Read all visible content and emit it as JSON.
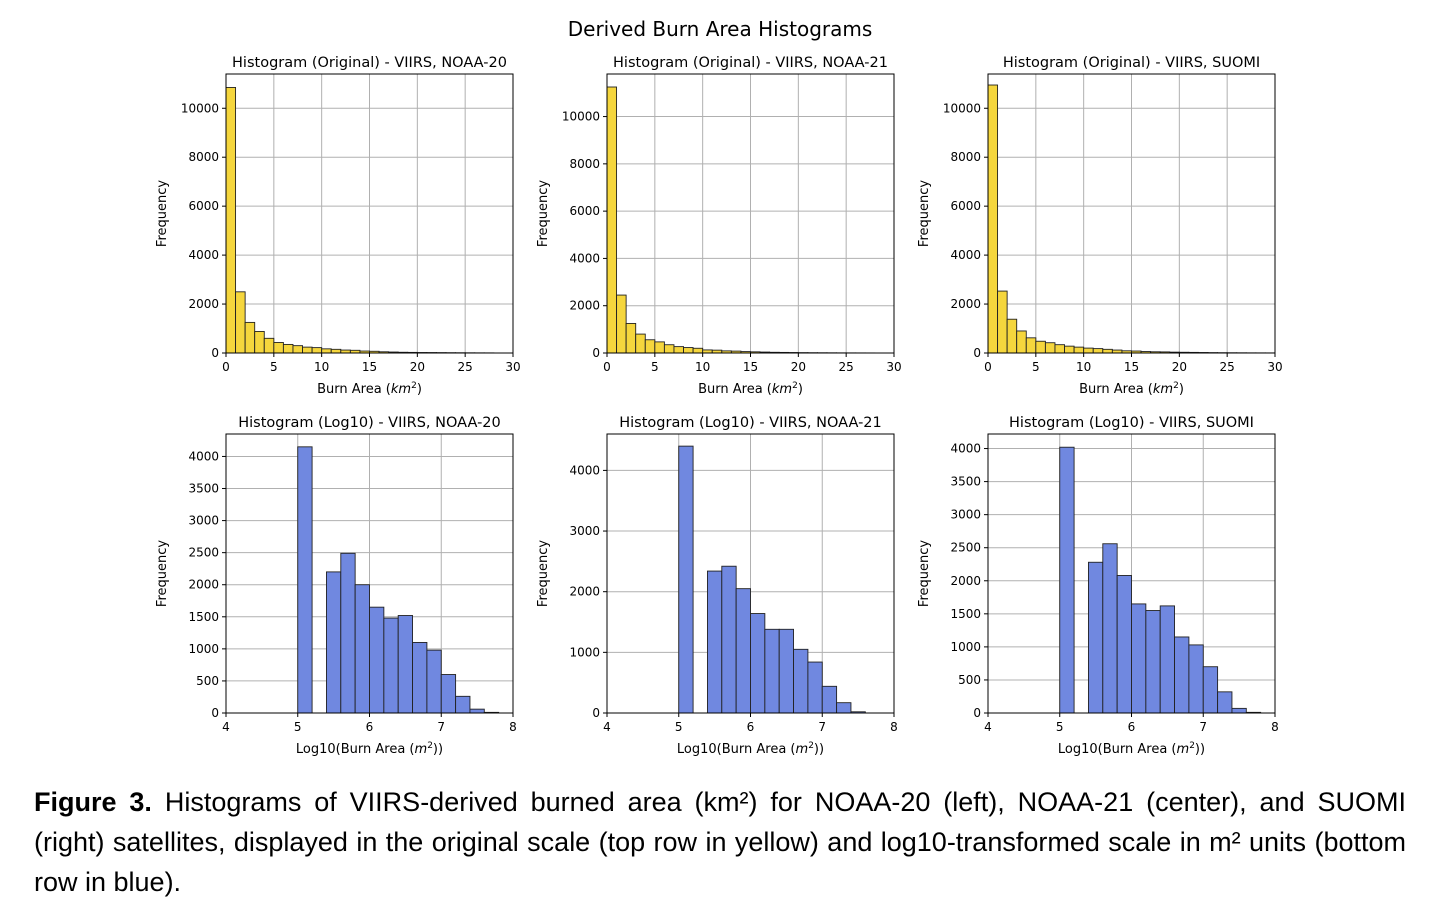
{
  "figure": {
    "suptitle": "Derived Burn Area Histograms"
  },
  "caption": {
    "label": "Figure 3.",
    "text": "Histograms of VIIRS-derived burned area (km²) for NOAA-20 (left), NOAA-21 (center), and SUOMI (right) satellites, displayed in the original scale (top row in yellow) and log10-transformed scale in m² units (bottom row in blue)."
  },
  "colors": {
    "original_fill": "#f5d63d",
    "log_fill": "#7088e0",
    "bar_edge": "#222222",
    "grid": "#b0b0b0"
  },
  "chart_data": [
    {
      "type": "bar",
      "title": "Histogram (Original) - VIIRS, NOAA-20",
      "xlabel": "Burn Area (km²)",
      "ylabel": "Frequency",
      "xlim": [
        0,
        30
      ],
      "ylim": [
        0,
        11400
      ],
      "xticks": [
        0,
        5,
        10,
        15,
        20,
        25,
        30
      ],
      "yticks": [
        0,
        2000,
        4000,
        6000,
        8000,
        10000
      ],
      "bin_start": 0,
      "bin_width": 1,
      "values": [
        10850,
        2500,
        1250,
        880,
        600,
        430,
        350,
        300,
        240,
        220,
        170,
        150,
        120,
        110,
        80,
        70,
        50,
        40,
        30,
        25,
        20,
        18,
        15,
        12,
        10,
        8,
        6,
        5,
        0,
        0
      ],
      "color": "#f5d63d",
      "grid": true
    },
    {
      "type": "bar",
      "title": "Histogram (Original) - VIIRS, NOAA-21",
      "xlabel": "Burn Area (km²)",
      "ylabel": "Frequency",
      "xlim": [
        0,
        30
      ],
      "ylim": [
        0,
        11800
      ],
      "xticks": [
        0,
        5,
        10,
        15,
        20,
        25,
        30
      ],
      "yticks": [
        0,
        2000,
        4000,
        6000,
        8000,
        10000
      ],
      "bin_start": 0,
      "bin_width": 1,
      "values": [
        11250,
        2450,
        1250,
        800,
        560,
        470,
        350,
        270,
        230,
        200,
        130,
        120,
        90,
        80,
        60,
        50,
        40,
        30,
        25,
        20,
        15,
        12,
        10,
        8,
        6,
        5,
        4,
        3,
        0,
        0
      ],
      "color": "#f5d63d",
      "grid": true
    },
    {
      "type": "bar",
      "title": "Histogram (Original) - VIIRS, SUOMI",
      "xlabel": "Burn Area (km²)",
      "ylabel": "Frequency",
      "xlim": [
        0,
        30
      ],
      "ylim": [
        0,
        11400
      ],
      "xticks": [
        0,
        5,
        10,
        15,
        20,
        25,
        30
      ],
      "yticks": [
        0,
        2000,
        4000,
        6000,
        8000,
        10000
      ],
      "bin_start": 0,
      "bin_width": 1,
      "values": [
        10950,
        2530,
        1380,
        900,
        620,
        480,
        420,
        340,
        280,
        240,
        200,
        180,
        150,
        120,
        90,
        80,
        60,
        50,
        45,
        35,
        30,
        25,
        20,
        15,
        12,
        10,
        8,
        6,
        5,
        4
      ],
      "color": "#f5d63d",
      "grid": true
    },
    {
      "type": "bar",
      "title": "Histogram (Log10) - VIIRS, NOAA-20",
      "xlabel": "Log10(Burn Area (m²))",
      "ylabel": "Frequency",
      "xlim": [
        4,
        8
      ],
      "ylim": [
        0,
        4350
      ],
      "xticks": [
        4,
        5,
        6,
        7,
        8
      ],
      "yticks": [
        0,
        500,
        1000,
        1500,
        2000,
        2500,
        3000,
        3500,
        4000
      ],
      "bin_start": 5.0,
      "bin_width": 0.2,
      "values": [
        4150,
        0,
        2200,
        2490,
        2000,
        1650,
        1480,
        1520,
        1100,
        980,
        600,
        260,
        60,
        10
      ],
      "color": "#7088e0",
      "grid": true
    },
    {
      "type": "bar",
      "title": "Histogram (Log10) - VIIRS, NOAA-21",
      "xlabel": "Log10(Burn Area (m²))",
      "ylabel": "Frequency",
      "xlim": [
        4,
        8
      ],
      "ylim": [
        0,
        4600
      ],
      "xticks": [
        4,
        5,
        6,
        7,
        8
      ],
      "yticks": [
        0,
        1000,
        2000,
        3000,
        4000
      ],
      "bin_start": 5.0,
      "bin_width": 0.2,
      "values": [
        4400,
        0,
        2340,
        2420,
        2050,
        1640,
        1380,
        1380,
        1050,
        840,
        440,
        170,
        20,
        0
      ],
      "color": "#7088e0",
      "grid": true
    },
    {
      "type": "bar",
      "title": "Histogram (Log10) - VIIRS, SUOMI",
      "xlabel": "Log10(Burn Area (m²))",
      "ylabel": "Frequency",
      "xlim": [
        4,
        8
      ],
      "ylim": [
        0,
        4220
      ],
      "xticks": [
        4,
        5,
        6,
        7,
        8
      ],
      "yticks": [
        0,
        500,
        1000,
        1500,
        2000,
        2500,
        3000,
        3500,
        4000
      ],
      "bin_start": 5.0,
      "bin_width": 0.2,
      "values": [
        4020,
        0,
        2280,
        2560,
        2080,
        1650,
        1550,
        1620,
        1150,
        1030,
        700,
        320,
        70,
        10
      ],
      "color": "#7088e0",
      "grid": true
    }
  ]
}
